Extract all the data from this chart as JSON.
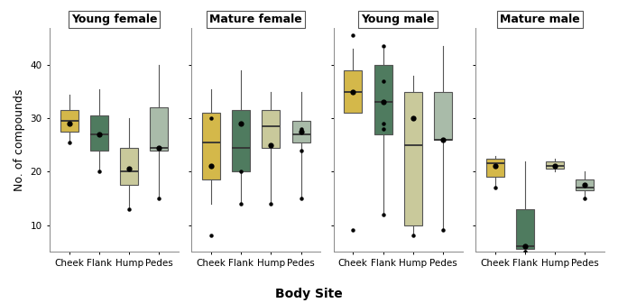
{
  "groups": [
    "Young female",
    "Mature female",
    "Young male",
    "Mature male"
  ],
  "body_sites": [
    "Cheek",
    "Flank",
    "Hump",
    "Pedes"
  ],
  "colors": {
    "Cheek": "#D4B84A",
    "Flank": "#4F7B5F",
    "Hump": "#C9C99B",
    "Pedes": "#A9BBA9"
  },
  "edge_color": "#555555",
  "boxplot_data": {
    "Young female": {
      "Cheek": {
        "whislo": 25.5,
        "q1": 27.5,
        "med": 29.5,
        "q3": 31.5,
        "whishi": 34.5,
        "fliers": [
          25.5
        ]
      },
      "Flank": {
        "whislo": 20.0,
        "q1": 24.0,
        "med": 27.0,
        "q3": 30.5,
        "whishi": 35.5,
        "fliers": [
          20.0
        ]
      },
      "Hump": {
        "whislo": 13.0,
        "q1": 17.5,
        "med": 20.0,
        "q3": 24.5,
        "whishi": 30.0,
        "fliers": [
          13.0
        ]
      },
      "Pedes": {
        "whislo": 15.0,
        "q1": 24.0,
        "med": 24.5,
        "q3": 32.0,
        "whishi": 40.0,
        "fliers": [
          15.0
        ]
      }
    },
    "Mature female": {
      "Cheek": {
        "whislo": 14.0,
        "q1": 18.5,
        "med": 25.5,
        "q3": 31.0,
        "whishi": 35.5,
        "fliers": [
          8.0,
          30.0
        ]
      },
      "Flank": {
        "whislo": 14.0,
        "q1": 20.0,
        "med": 24.5,
        "q3": 31.5,
        "whishi": 39.0,
        "fliers": [
          14.0,
          20.0
        ]
      },
      "Hump": {
        "whislo": 14.0,
        "q1": 24.5,
        "med": 28.5,
        "q3": 31.5,
        "whishi": 35.0,
        "fliers": [
          14.0
        ]
      },
      "Pedes": {
        "whislo": 15.0,
        "q1": 25.5,
        "med": 27.0,
        "q3": 29.5,
        "whishi": 35.0,
        "fliers": [
          15.0,
          24.0,
          28.0
        ]
      }
    },
    "Young male": {
      "Cheek": {
        "whislo": 31.0,
        "q1": 31.0,
        "med": 35.0,
        "q3": 39.0,
        "whishi": 43.0,
        "fliers": [
          45.5,
          9.0
        ]
      },
      "Flank": {
        "whislo": 12.0,
        "q1": 27.0,
        "med": 33.0,
        "q3": 40.0,
        "whishi": 43.0,
        "fliers": [
          12.0,
          43.5,
          37.0,
          29.0,
          28.0
        ]
      },
      "Hump": {
        "whislo": 8.0,
        "q1": 10.0,
        "med": 25.0,
        "q3": 35.0,
        "whishi": 38.0,
        "fliers": [
          8.0
        ]
      },
      "Pedes": {
        "whislo": 9.0,
        "q1": 26.0,
        "med": 26.0,
        "q3": 35.0,
        "whishi": 43.5,
        "fliers": [
          9.0
        ]
      }
    },
    "Mature male": {
      "Cheek": {
        "whislo": 17.0,
        "q1": 19.0,
        "med": 21.5,
        "q3": 22.5,
        "whishi": 23.0,
        "fliers": [
          17.0
        ]
      },
      "Flank": {
        "whislo": 5.0,
        "q1": 5.5,
        "med": 6.0,
        "q3": 13.0,
        "whishi": 22.0,
        "fliers": [
          5.0
        ]
      },
      "Hump": {
        "whislo": 20.0,
        "q1": 20.5,
        "med": 21.0,
        "q3": 22.0,
        "whishi": 22.5,
        "fliers": []
      },
      "Pedes": {
        "whislo": 15.0,
        "q1": 16.5,
        "med": 17.0,
        "q3": 18.5,
        "whishi": 20.0,
        "fliers": [
          15.0
        ]
      }
    }
  },
  "mean_data": {
    "Young female": {
      "Cheek": 29.0,
      "Flank": 27.0,
      "Hump": 20.5,
      "Pedes": 24.5
    },
    "Mature female": {
      "Cheek": 21.0,
      "Flank": 29.0,
      "Hump": 25.0,
      "Pedes": 27.5
    },
    "Young male": {
      "Cheek": 35.0,
      "Flank": 33.0,
      "Hump": 30.0,
      "Pedes": 26.0
    },
    "Mature male": {
      "Cheek": 21.0,
      "Flank": 6.0,
      "Hump": 21.0,
      "Pedes": 17.5
    }
  },
  "ylabel": "No. of compounds",
  "xlabel": "Body Site",
  "ylim": [
    5,
    47
  ],
  "yticks": [
    10,
    20,
    30,
    40
  ],
  "background_color": "#ffffff",
  "title_fontsize": 9,
  "label_fontsize": 8,
  "box_width": 0.6
}
